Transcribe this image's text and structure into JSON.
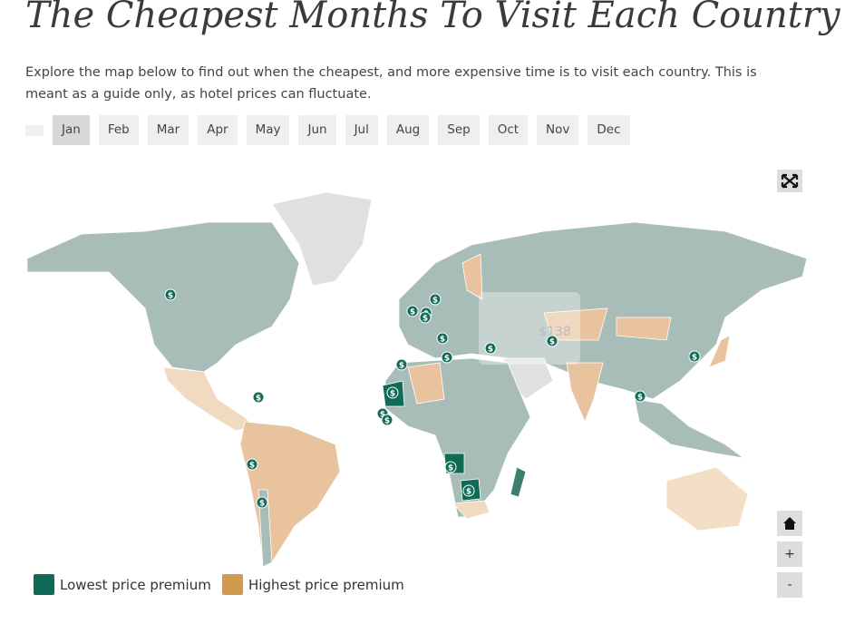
{
  "header": {
    "title": "The Cheapest Months To Visit Each Country",
    "intro": "Explore the map below to find out when the cheapest, and more expensive time is to visit each country. This is meant as a guide only, as hotel prices can fluctuate."
  },
  "months": [
    "Jan",
    "Feb",
    "Mar",
    "Apr",
    "May",
    "Jun",
    "Jul",
    "Aug",
    "Sep",
    "Oct",
    "Nov",
    "Dec"
  ],
  "map": {
    "marker_label": "$",
    "tooltip": "$138"
  },
  "controls": {
    "zoom_in": "+",
    "zoom_out": "-"
  },
  "legend": [
    "Lowest price premium",
    "Highest price premium"
  ]
}
